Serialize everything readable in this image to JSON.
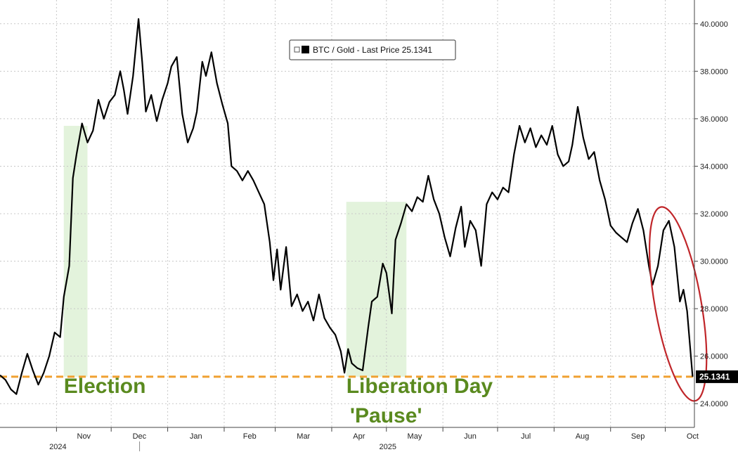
{
  "chart_data": {
    "type": "line",
    "series": [
      {
        "name": "BTC / Gold - Last Price 25.1341",
        "color": "#000000",
        "points": [
          [
            "2024-10-01",
            25.2
          ],
          [
            "2024-10-04",
            25.0
          ],
          [
            "2024-10-07",
            24.6
          ],
          [
            "2024-10-10",
            24.4
          ],
          [
            "2024-10-13",
            25.3
          ],
          [
            "2024-10-16",
            26.1
          ],
          [
            "2024-10-19",
            25.4
          ],
          [
            "2024-10-22",
            24.8
          ],
          [
            "2024-10-25",
            25.3
          ],
          [
            "2024-10-28",
            26.0
          ],
          [
            "2024-10-31",
            27.0
          ],
          [
            "2024-11-03",
            26.8
          ],
          [
            "2024-11-05",
            28.5
          ],
          [
            "2024-11-08",
            29.8
          ],
          [
            "2024-11-10",
            33.5
          ],
          [
            "2024-11-12",
            34.5
          ],
          [
            "2024-11-15",
            35.8
          ],
          [
            "2024-11-18",
            35.0
          ],
          [
            "2024-11-21",
            35.5
          ],
          [
            "2024-11-24",
            36.8
          ],
          [
            "2024-11-27",
            36.0
          ],
          [
            "2024-11-30",
            36.7
          ],
          [
            "2024-12-03",
            37.0
          ],
          [
            "2024-12-06",
            38.0
          ],
          [
            "2024-12-08",
            37.2
          ],
          [
            "2024-12-10",
            36.2
          ],
          [
            "2024-12-13",
            37.8
          ],
          [
            "2024-12-16",
            40.2
          ],
          [
            "2024-12-18",
            38.4
          ],
          [
            "2024-12-20",
            36.3
          ],
          [
            "2024-12-23",
            37.0
          ],
          [
            "2024-12-26",
            35.9
          ],
          [
            "2024-12-29",
            36.8
          ],
          [
            "2025-01-01",
            37.5
          ],
          [
            "2025-01-03",
            38.2
          ],
          [
            "2025-01-06",
            38.6
          ],
          [
            "2025-01-09",
            36.2
          ],
          [
            "2025-01-12",
            35.0
          ],
          [
            "2025-01-15",
            35.6
          ],
          [
            "2025-01-17",
            36.3
          ],
          [
            "2025-01-20",
            38.4
          ],
          [
            "2025-01-22",
            37.8
          ],
          [
            "2025-01-25",
            38.8
          ],
          [
            "2025-01-28",
            37.5
          ],
          [
            "2025-01-31",
            36.6
          ],
          [
            "2025-02-03",
            35.8
          ],
          [
            "2025-02-05",
            34.0
          ],
          [
            "2025-02-08",
            33.8
          ],
          [
            "2025-02-11",
            33.4
          ],
          [
            "2025-02-14",
            33.8
          ],
          [
            "2025-02-17",
            33.4
          ],
          [
            "2025-02-20",
            32.9
          ],
          [
            "2025-02-23",
            32.4
          ],
          [
            "2025-02-26",
            30.8
          ],
          [
            "2025-02-28",
            29.2
          ],
          [
            "2025-03-02",
            30.5
          ],
          [
            "2025-03-04",
            28.8
          ],
          [
            "2025-03-07",
            30.6
          ],
          [
            "2025-03-10",
            28.1
          ],
          [
            "2025-03-13",
            28.6
          ],
          [
            "2025-03-16",
            27.9
          ],
          [
            "2025-03-19",
            28.3
          ],
          [
            "2025-03-22",
            27.5
          ],
          [
            "2025-03-25",
            28.6
          ],
          [
            "2025-03-28",
            27.6
          ],
          [
            "2025-03-31",
            27.2
          ],
          [
            "2025-04-03",
            26.9
          ],
          [
            "2025-04-06",
            26.2
          ],
          [
            "2025-04-08",
            25.3
          ],
          [
            "2025-04-10",
            26.3
          ],
          [
            "2025-04-12",
            25.7
          ],
          [
            "2025-04-15",
            25.5
          ],
          [
            "2025-04-18",
            25.4
          ],
          [
            "2025-04-21",
            27.2
          ],
          [
            "2025-04-23",
            28.3
          ],
          [
            "2025-04-26",
            28.5
          ],
          [
            "2025-04-29",
            29.9
          ],
          [
            "2025-05-01",
            29.5
          ],
          [
            "2025-05-04",
            27.8
          ],
          [
            "2025-05-06",
            30.9
          ],
          [
            "2025-05-09",
            31.6
          ],
          [
            "2025-05-12",
            32.4
          ],
          [
            "2025-05-15",
            32.1
          ],
          [
            "2025-05-18",
            32.7
          ],
          [
            "2025-05-21",
            32.5
          ],
          [
            "2025-05-24",
            33.6
          ],
          [
            "2025-05-27",
            32.6
          ],
          [
            "2025-05-30",
            32.0
          ],
          [
            "2025-06-02",
            31.0
          ],
          [
            "2025-06-05",
            30.2
          ],
          [
            "2025-06-08",
            31.4
          ],
          [
            "2025-06-11",
            32.3
          ],
          [
            "2025-06-13",
            30.6
          ],
          [
            "2025-06-16",
            31.7
          ],
          [
            "2025-06-19",
            31.3
          ],
          [
            "2025-06-22",
            29.8
          ],
          [
            "2025-06-25",
            32.4
          ],
          [
            "2025-06-28",
            32.9
          ],
          [
            "2025-07-01",
            32.6
          ],
          [
            "2025-07-04",
            33.1
          ],
          [
            "2025-07-07",
            32.9
          ],
          [
            "2025-07-10",
            34.5
          ],
          [
            "2025-07-13",
            35.7
          ],
          [
            "2025-07-16",
            35.0
          ],
          [
            "2025-07-19",
            35.6
          ],
          [
            "2025-07-22",
            34.8
          ],
          [
            "2025-07-25",
            35.3
          ],
          [
            "2025-07-28",
            34.9
          ],
          [
            "2025-07-31",
            35.7
          ],
          [
            "2025-08-03",
            34.5
          ],
          [
            "2025-08-06",
            34.0
          ],
          [
            "2025-08-09",
            34.2
          ],
          [
            "2025-08-11",
            34.9
          ],
          [
            "2025-08-14",
            36.5
          ],
          [
            "2025-08-17",
            35.2
          ],
          [
            "2025-08-20",
            34.3
          ],
          [
            "2025-08-23",
            34.6
          ],
          [
            "2025-08-26",
            33.4
          ],
          [
            "2025-08-29",
            32.6
          ],
          [
            "2025-09-01",
            31.5
          ],
          [
            "2025-09-04",
            31.2
          ],
          [
            "2025-09-07",
            31.0
          ],
          [
            "2025-09-10",
            30.8
          ],
          [
            "2025-09-13",
            31.6
          ],
          [
            "2025-09-16",
            32.2
          ],
          [
            "2025-09-19",
            31.3
          ],
          [
            "2025-09-22",
            29.8
          ],
          [
            "2025-09-24",
            29.0
          ],
          [
            "2025-09-27",
            29.8
          ],
          [
            "2025-09-30",
            31.3
          ],
          [
            "2025-10-03",
            31.7
          ],
          [
            "2025-10-06",
            30.6
          ],
          [
            "2025-10-09",
            28.3
          ],
          [
            "2025-10-11",
            28.8
          ],
          [
            "2025-10-13",
            27.9
          ],
          [
            "2025-10-16",
            25.1341
          ]
        ]
      }
    ],
    "xlim": [
      "2024-10-01",
      "2025-10-17"
    ],
    "ylim": [
      23.0,
      41.0
    ],
    "y_ticks": [
      24.0,
      26.0,
      28.0,
      30.0,
      32.0,
      34.0,
      36.0,
      38.0,
      40.0
    ],
    "y_tick_labels": [
      "24.0000",
      "26.0000",
      "28.0000",
      "30.0000",
      "32.0000",
      "34.0000",
      "36.0000",
      "38.0000",
      "40.0000"
    ],
    "y_axis_side": "right",
    "x_months": [
      {
        "date": "2024-11-01",
        "label": "Nov"
      },
      {
        "date": "2024-12-01",
        "label": "Dec"
      },
      {
        "date": "2025-01-01",
        "label": "Jan"
      },
      {
        "date": "2025-02-01",
        "label": "Feb"
      },
      {
        "date": "2025-03-01",
        "label": "Mar"
      },
      {
        "date": "2025-04-01",
        "label": "Apr"
      },
      {
        "date": "2025-05-01",
        "label": "May"
      },
      {
        "date": "2025-06-01",
        "label": "Jun"
      },
      {
        "date": "2025-07-01",
        "label": "Jul"
      },
      {
        "date": "2025-08-01",
        "label": "Aug"
      },
      {
        "date": "2025-09-01",
        "label": "Sep"
      },
      {
        "date": "2025-10-01",
        "label": "Oct"
      }
    ],
    "x_years": [
      {
        "date": "2024-11-01",
        "label": "2024"
      },
      {
        "date": "2025-05-01",
        "label": "2025"
      }
    ],
    "grid": true,
    "legend": {
      "placement": "top-center",
      "label": "BTC / Gold - Last Price 25.1341"
    },
    "last_value_label": "25.1341",
    "reference_line": {
      "value": 25.1341,
      "color": "#f0a030",
      "style": "dashed"
    },
    "shaded_regions": [
      {
        "x_start": "2024-11-05",
        "x_end": "2024-11-18",
        "y_top": 35.7,
        "color": "#e3f3dc"
      },
      {
        "x_start": "2025-04-09",
        "x_end": "2025-05-12",
        "y_top": 32.5,
        "color": "#e3f3dc"
      }
    ],
    "highlight_ellipse": {
      "center_date": "2025-10-08",
      "center_value": 28.2,
      "color": "#c0262a"
    },
    "annotations": [
      {
        "text": "Election",
        "date": "2024-11-05",
        "value": 24.45,
        "color": "#5a8a1f"
      },
      {
        "text": "Liberation Day",
        "date": "2025-04-09",
        "value": 24.45,
        "color": "#5a8a1f"
      },
      {
        "text": "'Pause'",
        "date": "2025-04-11",
        "value": 23.2,
        "color": "#5a8a1f"
      }
    ]
  }
}
